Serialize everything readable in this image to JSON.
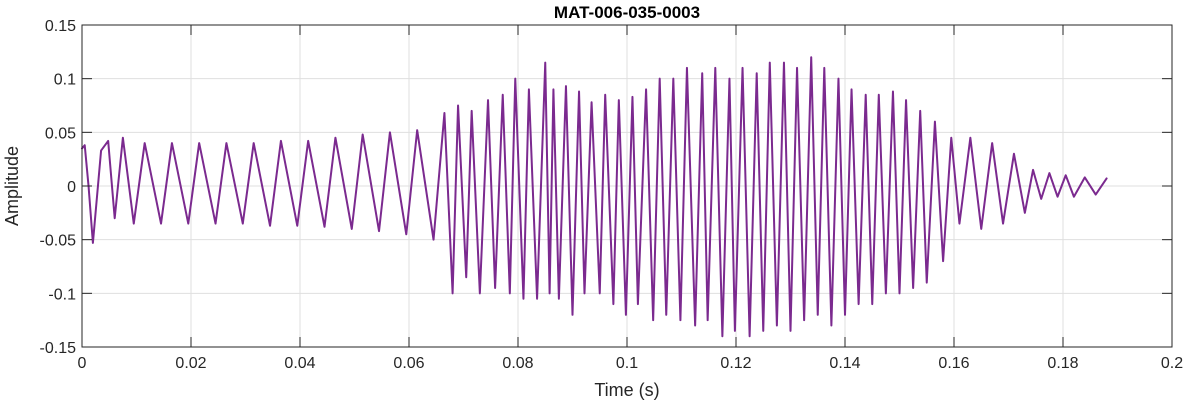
{
  "chart_data": {
    "type": "line",
    "title": "MAT-006-035-0003",
    "xlabel": "Time (s)",
    "ylabel": "Amplitude",
    "xlim": [
      0,
      0.2
    ],
    "ylim": [
      -0.15,
      0.15
    ],
    "grid": true,
    "legend": "none",
    "x_ticks": [
      0,
      0.02,
      0.04,
      0.06,
      0.08,
      0.1,
      0.12,
      0.14,
      0.16,
      0.18,
      0.2
    ],
    "x_tick_labels": [
      "0",
      "0.02",
      "0.04",
      "0.06",
      "0.08",
      "0.1",
      "0.12",
      "0.14",
      "0.16",
      "0.18",
      "0.2"
    ],
    "y_ticks": [
      -0.15,
      -0.1,
      -0.05,
      0,
      0.05,
      0.1,
      0.15
    ],
    "y_tick_labels": [
      "-0.15",
      "-0.1",
      "-0.05",
      "0",
      "0.05",
      "0.1",
      "0.15"
    ],
    "colors": {
      "line": "#7B2A8F",
      "grid": "#dfdfdf",
      "axes": "#262626"
    },
    "series": [
      {
        "x": [
          0,
          0.0005,
          0.0012,
          0.002,
          0.0035,
          0.0048,
          0.006,
          0.0075,
          0.0095,
          0.0115,
          0.0145,
          0.0165,
          0.0195,
          0.0215,
          0.0245,
          0.0265,
          0.0295,
          0.0315,
          0.0345,
          0.0365,
          0.0395,
          0.0415,
          0.0445,
          0.0465,
          0.0495,
          0.0515,
          0.0545,
          0.0565,
          0.0595,
          0.0615,
          0.0645,
          0.0665,
          0.068,
          0.069,
          0.0705,
          0.0715,
          0.073,
          0.0745,
          0.0758,
          0.0772,
          0.0785,
          0.0795,
          0.081,
          0.082,
          0.0835,
          0.085,
          0.0858,
          0.0865,
          0.0875,
          0.0888,
          0.09,
          0.0912,
          0.0922,
          0.0935,
          0.095,
          0.096,
          0.0975,
          0.0985,
          0.0998,
          0.101,
          0.102,
          0.1035,
          0.1048,
          0.106,
          0.1072,
          0.1085,
          0.1098,
          0.111,
          0.1125,
          0.1138,
          0.1148,
          0.1162,
          0.1175,
          0.1188,
          0.1198,
          0.1212,
          0.1225,
          0.1238,
          0.125,
          0.1262,
          0.1275,
          0.1288,
          0.13,
          0.1312,
          0.1325,
          0.1338,
          0.135,
          0.1362,
          0.1375,
          0.1388,
          0.14,
          0.1412,
          0.1425,
          0.1438,
          0.145,
          0.1462,
          0.1475,
          0.1488,
          0.15,
          0.1512,
          0.1525,
          0.1538,
          0.155,
          0.1565,
          0.158,
          0.1595,
          0.161,
          0.163,
          0.165,
          0.167,
          0.169,
          0.171,
          0.173,
          0.1745,
          0.176,
          0.1775,
          0.179,
          0.1805,
          0.182,
          0.184,
          0.186,
          0.188
        ],
        "y": [
          0.035,
          0.038,
          0.0,
          -0.053,
          0.033,
          0.042,
          -0.03,
          0.045,
          -0.035,
          0.04,
          -0.035,
          0.04,
          -0.035,
          0.04,
          -0.035,
          0.04,
          -0.035,
          0.04,
          -0.037,
          0.042,
          -0.037,
          0.042,
          -0.038,
          0.045,
          -0.04,
          0.048,
          -0.042,
          0.05,
          -0.045,
          0.052,
          -0.05,
          0.068,
          -0.1,
          0.075,
          -0.085,
          0.07,
          -0.1,
          0.08,
          -0.095,
          0.085,
          -0.1,
          0.1,
          -0.105,
          0.09,
          -0.105,
          0.115,
          -0.1,
          0.09,
          -0.105,
          0.093,
          -0.12,
          0.088,
          -0.1,
          0.078,
          -0.1,
          0.085,
          -0.11,
          0.08,
          -0.12,
          0.083,
          -0.11,
          0.09,
          -0.125,
          0.1,
          -0.12,
          0.1,
          -0.125,
          0.11,
          -0.13,
          0.105,
          -0.125,
          0.11,
          -0.14,
          0.1,
          -0.135,
          0.11,
          -0.14,
          0.105,
          -0.135,
          0.115,
          -0.13,
          0.115,
          -0.135,
          0.11,
          -0.125,
          0.12,
          -0.12,
          0.11,
          -0.13,
          0.1,
          -0.12,
          0.09,
          -0.11,
          0.085,
          -0.11,
          0.085,
          -0.1,
          0.088,
          -0.1,
          0.08,
          -0.095,
          0.07,
          -0.09,
          0.06,
          -0.07,
          0.045,
          -0.035,
          0.045,
          -0.04,
          0.04,
          -0.035,
          0.03,
          -0.025,
          0.015,
          -0.012,
          0.012,
          -0.01,
          0.01,
          -0.01,
          0.008,
          -0.008,
          0.007
        ]
      }
    ]
  }
}
